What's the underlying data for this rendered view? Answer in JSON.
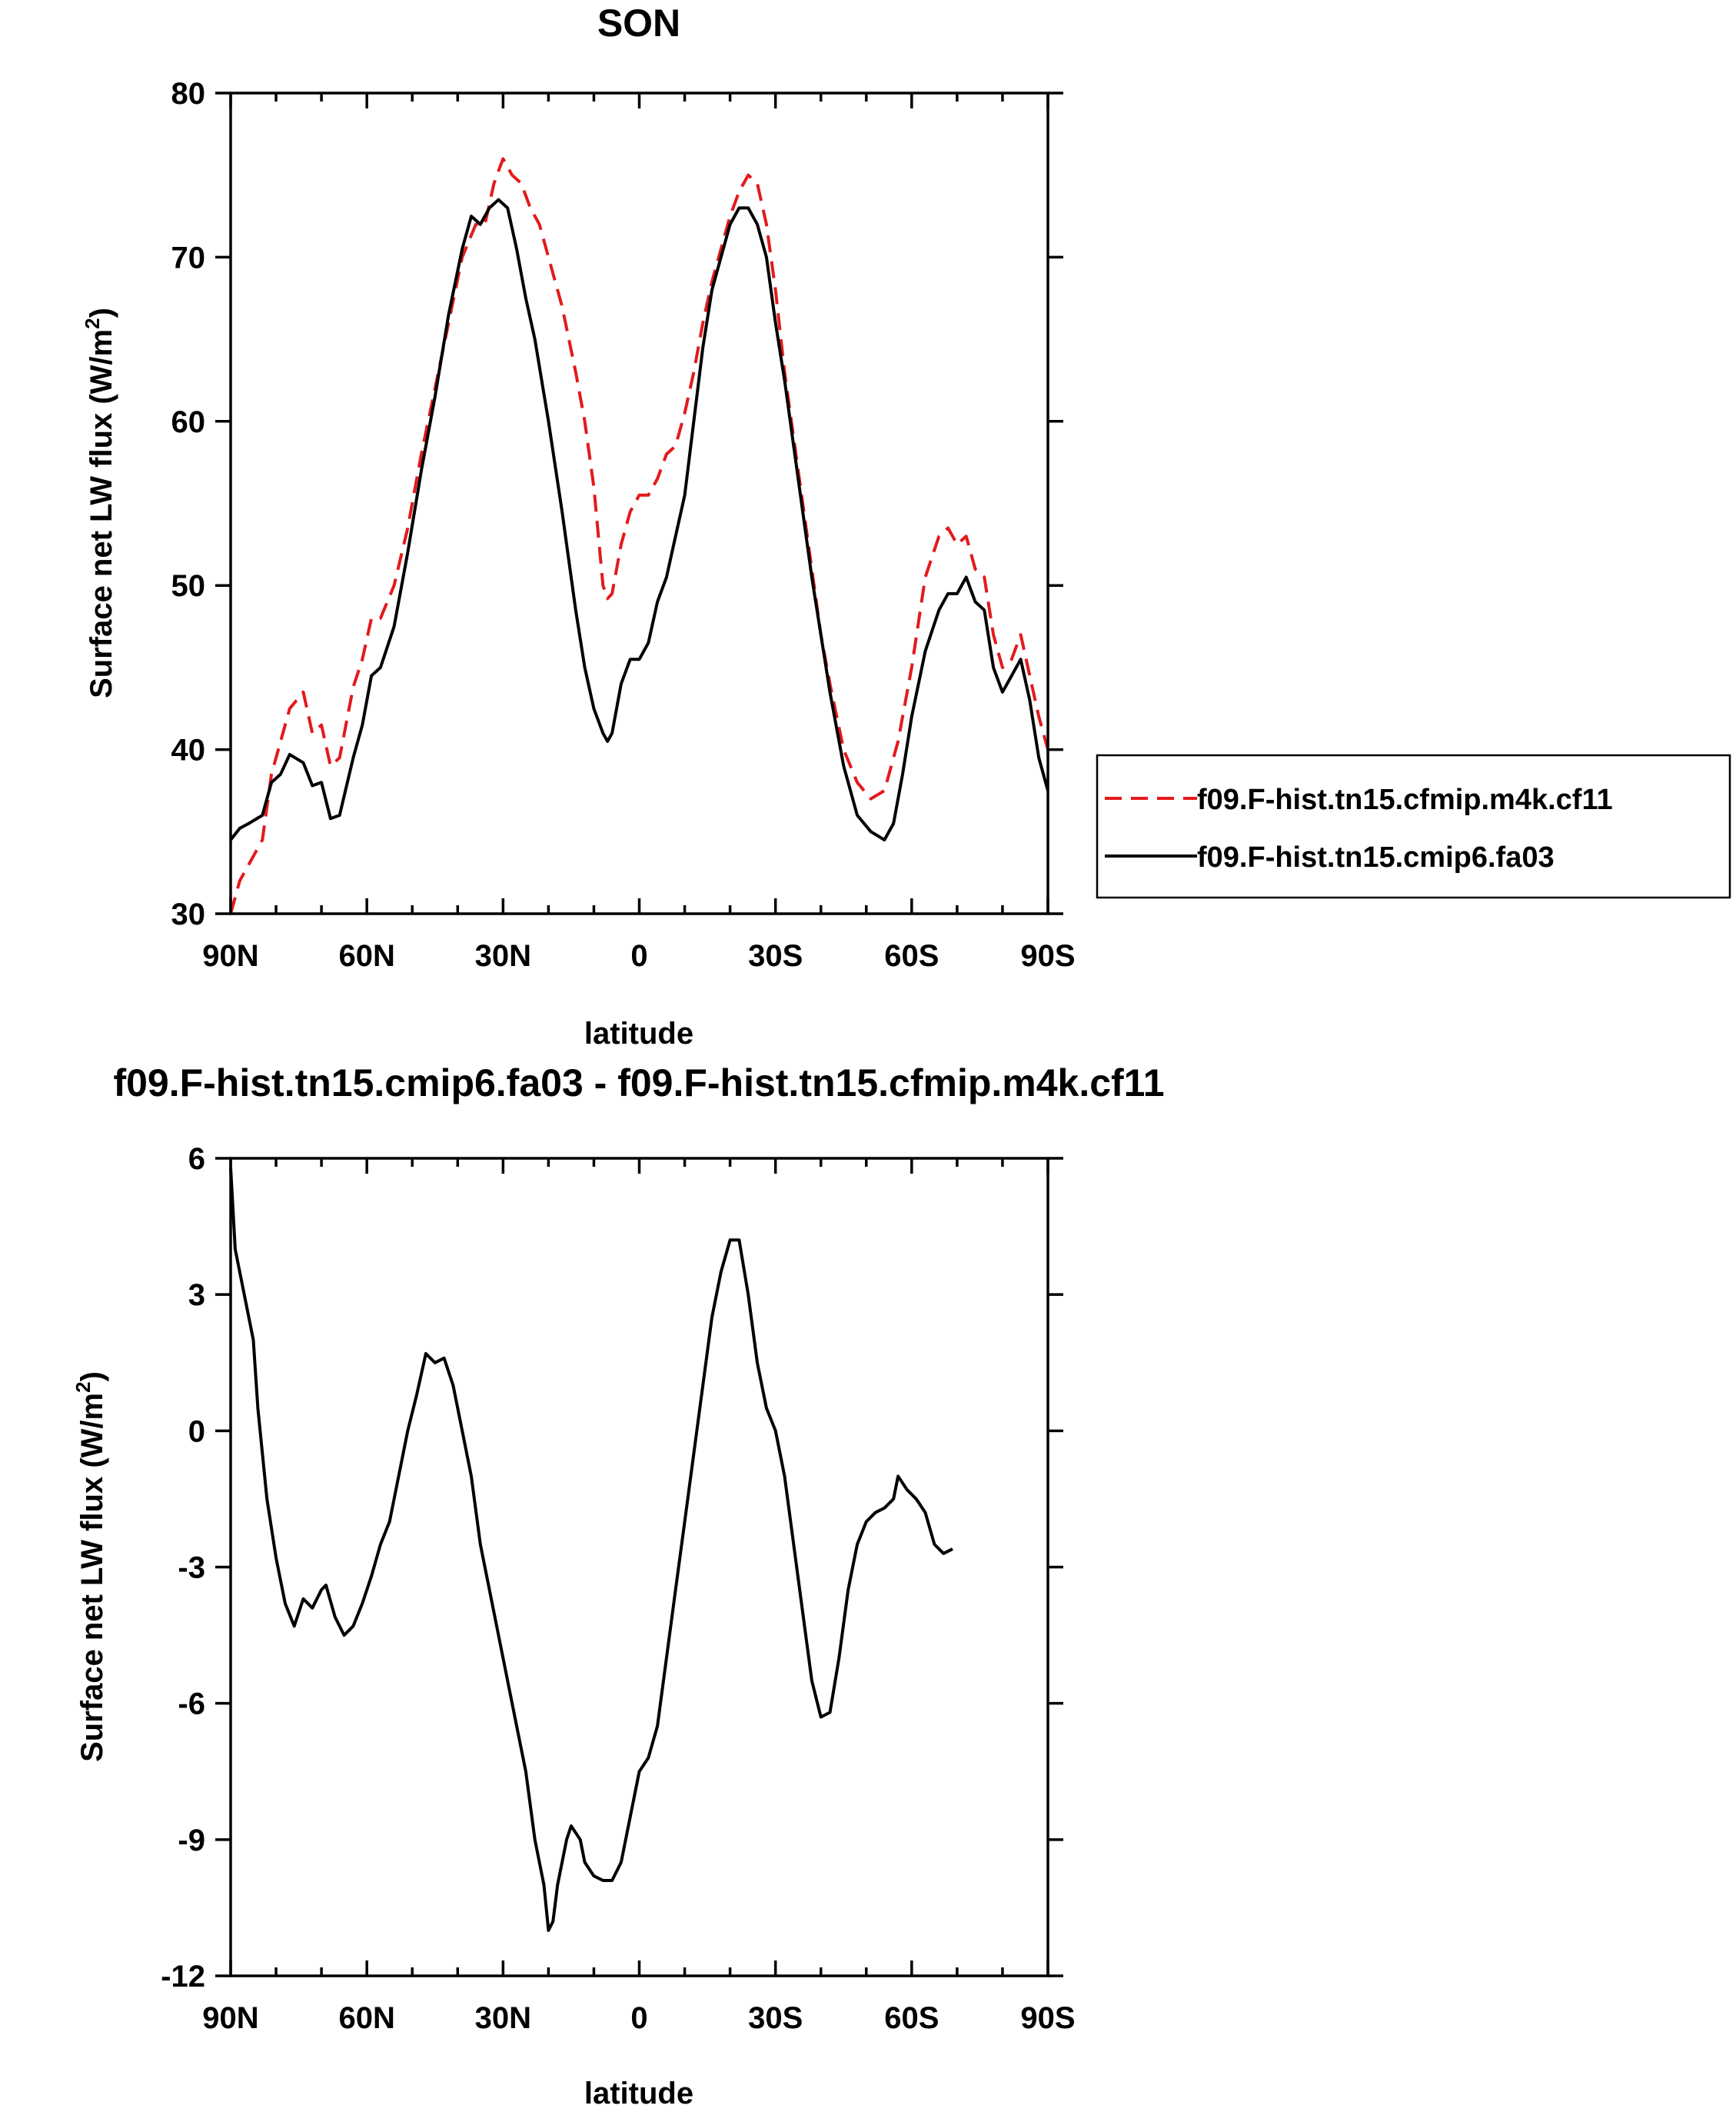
{
  "chart_data": [
    {
      "type": "line",
      "title": "SON",
      "xlabel": "latitude",
      "ylabel": "Surface net LW flux (W/m",
      "ylabel_sup": "2",
      "ylabel_end": ")",
      "xlim": [
        90,
        -90
      ],
      "ylim": [
        30,
        80
      ],
      "xticks": [
        90,
        60,
        30,
        0,
        -30,
        -60,
        -90
      ],
      "xtick_labels": [
        "90N",
        "60N",
        "30N",
        "0",
        "30S",
        "60S",
        "90S"
      ],
      "yticks": [
        30,
        40,
        50,
        60,
        70,
        80
      ],
      "ytick_labels": [
        "30",
        "40",
        "50",
        "60",
        "70",
        "80"
      ],
      "legend_position": "outside-right",
      "series": [
        {
          "name": "f09.F-hist.tn15.cfmip.m4k.cf11",
          "color": "#e31a1c",
          "dash": "dashed",
          "points": [
            [
              90,
              30.0
            ],
            [
              88,
              32.0
            ],
            [
              86,
              33.0
            ],
            [
              83,
              34.5
            ],
            [
              81,
              38.5
            ],
            [
              79,
              40.5
            ],
            [
              77,
              42.5
            ],
            [
              74,
              43.5
            ],
            [
              72,
              41.0
            ],
            [
              70,
              41.5
            ],
            [
              68,
              39.0
            ],
            [
              66,
              39.5
            ],
            [
              63,
              43.8
            ],
            [
              61,
              45.5
            ],
            [
              59,
              48.0
            ],
            [
              57,
              48.0
            ],
            [
              54,
              50.0
            ],
            [
              51,
              53.5
            ],
            [
              48,
              58.0
            ],
            [
              45,
              62.0
            ],
            [
              42,
              66.0
            ],
            [
              39,
              70.0
            ],
            [
              36,
              72.0
            ],
            [
              34,
              72.0
            ],
            [
              32,
              74.5
            ],
            [
              30,
              76.0
            ],
            [
              28,
              75.0
            ],
            [
              26,
              74.5
            ],
            [
              24,
              73.0
            ],
            [
              22,
              72.0
            ],
            [
              20,
              70.0
            ],
            [
              17,
              67.0
            ],
            [
              14,
              63.0
            ],
            [
              12,
              60.0
            ],
            [
              10,
              56.0
            ],
            [
              8,
              50.0
            ],
            [
              7,
              49.2
            ],
            [
              6,
              49.5
            ],
            [
              4,
              52.5
            ],
            [
              2,
              54.5
            ],
            [
              0,
              55.5
            ],
            [
              -2,
              55.5
            ],
            [
              -4,
              56.5
            ],
            [
              -6,
              58.0
            ],
            [
              -8,
              58.5
            ],
            [
              -10,
              60.5
            ],
            [
              -12,
              63.0
            ],
            [
              -14,
              66.0
            ],
            [
              -16,
              68.5
            ],
            [
              -18,
              70.5
            ],
            [
              -20,
              72.5
            ],
            [
              -22,
              74.0
            ],
            [
              -24,
              75.0
            ],
            [
              -26,
              74.5
            ],
            [
              -28,
              72.0
            ],
            [
              -30,
              68.0
            ],
            [
              -32,
              63.0
            ],
            [
              -34,
              59.0
            ],
            [
              -36,
              55.0
            ],
            [
              -38,
              51.0
            ],
            [
              -40,
              47.0
            ],
            [
              -42,
              44.0
            ],
            [
              -45,
              40.0
            ],
            [
              -48,
              38.0
            ],
            [
              -51,
              37.0
            ],
            [
              -54,
              37.5
            ],
            [
              -57,
              40.5
            ],
            [
              -60,
              45.0
            ],
            [
              -63,
              50.5
            ],
            [
              -66,
              53.0
            ],
            [
              -68,
              53.5
            ],
            [
              -70,
              52.5
            ],
            [
              -72,
              53.0
            ],
            [
              -74,
              51.0
            ],
            [
              -76,
              50.5
            ],
            [
              -78,
              47.0
            ],
            [
              -80,
              45.0
            ],
            [
              -82,
              45.5
            ],
            [
              -84,
              47.0
            ],
            [
              -86,
              44.5
            ],
            [
              -88,
              42.0
            ],
            [
              -90,
              40.0
            ]
          ]
        },
        {
          "name": "f09.F-hist.tn15.cmip6.fa03",
          "color": "#000000",
          "dash": "solid",
          "points": [
            [
              90,
              34.5
            ],
            [
              88,
              35.2
            ],
            [
              86,
              35.5
            ],
            [
              83,
              36.0
            ],
            [
              81,
              38.0
            ],
            [
              79,
              38.5
            ],
            [
              77,
              39.7
            ],
            [
              74,
              39.2
            ],
            [
              72,
              37.8
            ],
            [
              70,
              38.0
            ],
            [
              68,
              35.8
            ],
            [
              66,
              36.0
            ],
            [
              63,
              39.5
            ],
            [
              61,
              41.5
            ],
            [
              59,
              44.5
            ],
            [
              57,
              45.0
            ],
            [
              54,
              47.5
            ],
            [
              51,
              52.0
            ],
            [
              48,
              57.0
            ],
            [
              45,
              61.5
            ],
            [
              42,
              66.5
            ],
            [
              39,
              70.5
            ],
            [
              37,
              72.5
            ],
            [
              35,
              72.0
            ],
            [
              33,
              73.0
            ],
            [
              31,
              73.5
            ],
            [
              29,
              73.0
            ],
            [
              27,
              70.5
            ],
            [
              25,
              67.5
            ],
            [
              23,
              65.0
            ],
            [
              20,
              60.0
            ],
            [
              17,
              54.5
            ],
            [
              14,
              48.5
            ],
            [
              12,
              45.0
            ],
            [
              10,
              42.5
            ],
            [
              8,
              41.0
            ],
            [
              7,
              40.5
            ],
            [
              6,
              41.0
            ],
            [
              4,
              44.0
            ],
            [
              2,
              45.5
            ],
            [
              0,
              45.5
            ],
            [
              -2,
              46.5
            ],
            [
              -4,
              49.0
            ],
            [
              -6,
              50.5
            ],
            [
              -8,
              53.0
            ],
            [
              -10,
              55.5
            ],
            [
              -12,
              60.0
            ],
            [
              -14,
              64.5
            ],
            [
              -16,
              68.0
            ],
            [
              -18,
              70.0
            ],
            [
              -20,
              72.0
            ],
            [
              -22,
              73.0
            ],
            [
              -24,
              73.0
            ],
            [
              -26,
              72.0
            ],
            [
              -28,
              70.0
            ],
            [
              -30,
              66.0
            ],
            [
              -32,
              62.5
            ],
            [
              -34,
              58.5
            ],
            [
              -36,
              54.5
            ],
            [
              -38,
              50.5
            ],
            [
              -40,
              47.0
            ],
            [
              -42,
              43.5
            ],
            [
              -45,
              39.0
            ],
            [
              -48,
              36.0
            ],
            [
              -51,
              35.0
            ],
            [
              -54,
              34.5
            ],
            [
              -56,
              35.5
            ],
            [
              -58,
              38.5
            ],
            [
              -60,
              42.0
            ],
            [
              -63,
              46.0
            ],
            [
              -66,
              48.5
            ],
            [
              -68,
              49.5
            ],
            [
              -70,
              49.5
            ],
            [
              -72,
              50.5
            ],
            [
              -74,
              49.0
            ],
            [
              -76,
              48.5
            ],
            [
              -78,
              45.0
            ],
            [
              -80,
              43.5
            ],
            [
              -82,
              44.5
            ],
            [
              -84,
              45.5
            ],
            [
              -86,
              43.0
            ],
            [
              -88,
              39.5
            ],
            [
              -90,
              37.5
            ]
          ]
        }
      ]
    },
    {
      "type": "line",
      "title": "f09.F-hist.tn15.cmip6.fa03 - f09.F-hist.tn15.cfmip.m4k.cf11",
      "xlabel": "latitude",
      "ylabel": "Surface net LW flux (W/m",
      "ylabel_sup": "2",
      "ylabel_end": ")",
      "xlim": [
        90,
        -90
      ],
      "ylim": [
        -12,
        6
      ],
      "xticks": [
        90,
        60,
        30,
        0,
        -30,
        -60,
        -90
      ],
      "xtick_labels": [
        "90N",
        "60N",
        "30N",
        "0",
        "30S",
        "60S",
        "90S"
      ],
      "yticks": [
        -12,
        -9,
        -6,
        -3,
        0,
        3,
        6
      ],
      "ytick_labels": [
        "-12",
        "-9",
        "-6",
        "-3",
        "0",
        "3",
        "6"
      ],
      "series": [
        {
          "color": "#000000",
          "dash": "solid",
          "points": [
            [
              90,
              5.8
            ],
            [
              89,
              4.0
            ],
            [
              87,
              3.0
            ],
            [
              85,
              2.0
            ],
            [
              84,
              0.5
            ],
            [
              82,
              -1.5
            ],
            [
              80,
              -2.8
            ],
            [
              78,
              -3.8
            ],
            [
              76,
              -4.3
            ],
            [
              74,
              -3.7
            ],
            [
              72,
              -3.9
            ],
            [
              70,
              -3.5
            ],
            [
              69,
              -3.4
            ],
            [
              67,
              -4.1
            ],
            [
              65,
              -4.5
            ],
            [
              63,
              -4.3
            ],
            [
              61,
              -3.8
            ],
            [
              59,
              -3.2
            ],
            [
              57,
              -2.5
            ],
            [
              55,
              -2.0
            ],
            [
              53,
              -1.0
            ],
            [
              51,
              0.0
            ],
            [
              49,
              0.8
            ],
            [
              47,
              1.7
            ],
            [
              45,
              1.5
            ],
            [
              43,
              1.6
            ],
            [
              41,
              1.0
            ],
            [
              39,
              0.0
            ],
            [
              37,
              -1.0
            ],
            [
              35,
              -2.5
            ],
            [
              33,
              -3.5
            ],
            [
              31,
              -4.5
            ],
            [
              29,
              -5.5
            ],
            [
              27,
              -6.5
            ],
            [
              25,
              -7.5
            ],
            [
              23,
              -9.0
            ],
            [
              21,
              -10.0
            ],
            [
              20,
              -11.0
            ],
            [
              19,
              -10.8
            ],
            [
              18,
              -10.0
            ],
            [
              16,
              -9.0
            ],
            [
              15,
              -8.7
            ],
            [
              13,
              -9.0
            ],
            [
              12,
              -9.5
            ],
            [
              10,
              -9.8
            ],
            [
              8,
              -9.9
            ],
            [
              6,
              -9.9
            ],
            [
              4,
              -9.5
            ],
            [
              2,
              -8.5
            ],
            [
              0,
              -7.5
            ],
            [
              -2,
              -7.2
            ],
            [
              -4,
              -6.5
            ],
            [
              -6,
              -5.0
            ],
            [
              -8,
              -3.5
            ],
            [
              -10,
              -2.0
            ],
            [
              -12,
              -0.5
            ],
            [
              -14,
              1.0
            ],
            [
              -16,
              2.5
            ],
            [
              -18,
              3.5
            ],
            [
              -20,
              4.2
            ],
            [
              -22,
              4.2
            ],
            [
              -24,
              3.0
            ],
            [
              -26,
              1.5
            ],
            [
              -28,
              0.5
            ],
            [
              -30,
              0.0
            ],
            [
              -32,
              -1.0
            ],
            [
              -34,
              -2.5
            ],
            [
              -36,
              -4.0
            ],
            [
              -38,
              -5.5
            ],
            [
              -40,
              -6.3
            ],
            [
              -42,
              -6.2
            ],
            [
              -44,
              -5.0
            ],
            [
              -46,
              -3.5
            ],
            [
              -48,
              -2.5
            ],
            [
              -50,
              -2.0
            ],
            [
              -52,
              -1.8
            ],
            [
              -54,
              -1.7
            ],
            [
              -56,
              -1.5
            ],
            [
              -57,
              -1.0
            ],
            [
              -59,
              -1.3
            ],
            [
              -61,
              -1.5
            ],
            [
              -63,
              -1.8
            ],
            [
              -65,
              -2.5
            ],
            [
              -67,
              -2.7
            ],
            [
              -69,
              -2.6
            ]
          ]
        }
      ]
    }
  ]
}
